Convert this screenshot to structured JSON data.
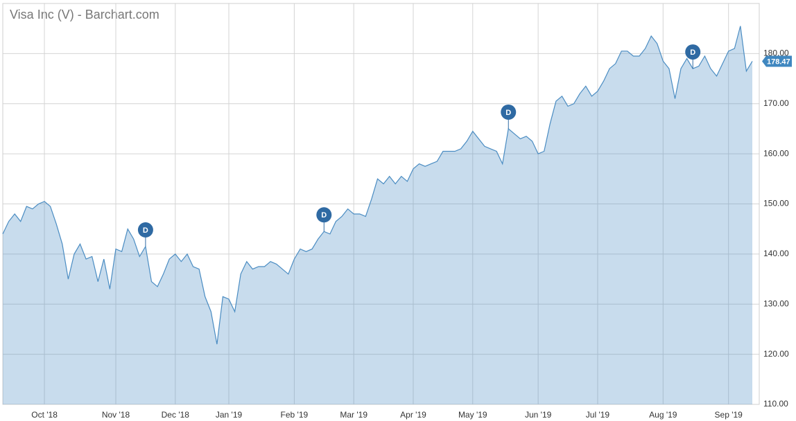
{
  "chart_data": {
    "type": "area",
    "title": "Visa Inc (V) - Barchart.com",
    "categories": [
      null,
      null,
      null,
      null,
      null,
      null,
      null,
      "Oct '18",
      null,
      null,
      null,
      null,
      null,
      null,
      null,
      null,
      null,
      null,
      null,
      "Nov '18",
      null,
      null,
      null,
      null,
      null,
      null,
      null,
      null,
      null,
      "Dec '18",
      null,
      null,
      null,
      null,
      null,
      null,
      null,
      null,
      "Jan '19",
      null,
      null,
      null,
      null,
      null,
      null,
      null,
      null,
      null,
      null,
      "Feb '19",
      null,
      null,
      null,
      null,
      null,
      null,
      null,
      null,
      null,
      "Mar '19",
      null,
      null,
      null,
      null,
      null,
      null,
      null,
      null,
      null,
      "Apr '19",
      null,
      null,
      null,
      null,
      null,
      null,
      null,
      null,
      null,
      "May '19",
      null,
      null,
      null,
      null,
      null,
      null,
      null,
      null,
      null,
      null,
      "Jun '19",
      null,
      null,
      null,
      null,
      null,
      null,
      null,
      null,
      null,
      "Jul '19",
      null,
      null,
      null,
      null,
      null,
      null,
      null,
      null,
      null,
      null,
      "Aug '19",
      null,
      null,
      null,
      null,
      null,
      null,
      null,
      null,
      null,
      null,
      "Sep '19",
      null,
      null,
      null,
      null
    ],
    "series": [
      {
        "name": "Visa Inc (V)",
        "color": "#4a8cc2",
        "values": [
          144,
          146.5,
          148,
          146.5,
          149.5,
          149,
          150,
          150.5,
          149.5,
          146,
          142,
          135,
          140,
          142,
          139,
          139.5,
          134.5,
          139,
          133,
          141,
          140.5,
          145,
          143,
          139.5,
          141.5,
          134.5,
          133.5,
          136,
          139,
          140,
          138.5,
          140,
          137.5,
          137,
          131.5,
          128.5,
          122,
          131.5,
          131,
          128.5,
          136,
          138.5,
          137,
          137.5,
          137.5,
          138.5,
          138,
          137,
          136,
          139,
          141,
          140.5,
          141,
          143,
          144.5,
          144,
          146.5,
          147.5,
          149,
          148,
          148,
          147.5,
          151,
          155,
          154,
          155.5,
          154,
          155.5,
          154.5,
          157,
          158,
          157.5,
          158,
          158.5,
          160.5,
          160.5,
          160.5,
          161,
          162.5,
          164.5,
          163,
          161.5,
          161,
          160.5,
          158,
          165,
          164,
          163,
          163.5,
          162.5,
          160,
          160.5,
          166,
          170.5,
          171.5,
          169.5,
          170,
          172,
          173.5,
          171.5,
          172.5,
          174.5,
          177,
          178,
          180.5,
          180.5,
          179.5,
          179.5,
          181,
          183.5,
          182,
          178.5,
          177,
          171,
          177,
          179,
          177,
          177.5,
          179.5,
          177,
          175.5,
          178,
          180.5,
          181,
          185.5,
          176.5,
          178.47
        ]
      }
    ],
    "annotations": [
      "D",
      "D",
      "D",
      "D"
    ],
    "ylim": [
      110,
      190
    ],
    "yticks": [
      {
        "value": 110,
        "label": "110.00"
      },
      {
        "value": 120,
        "label": "120.00"
      },
      {
        "value": 130,
        "label": "130.00"
      },
      {
        "value": 140,
        "label": "140.00"
      },
      {
        "value": 150,
        "label": "150.00"
      },
      {
        "value": 160,
        "label": "160.00"
      },
      {
        "value": 170,
        "label": "170.00"
      },
      {
        "value": 180,
        "label": "180.00"
      }
    ],
    "grid": true
  }
}
